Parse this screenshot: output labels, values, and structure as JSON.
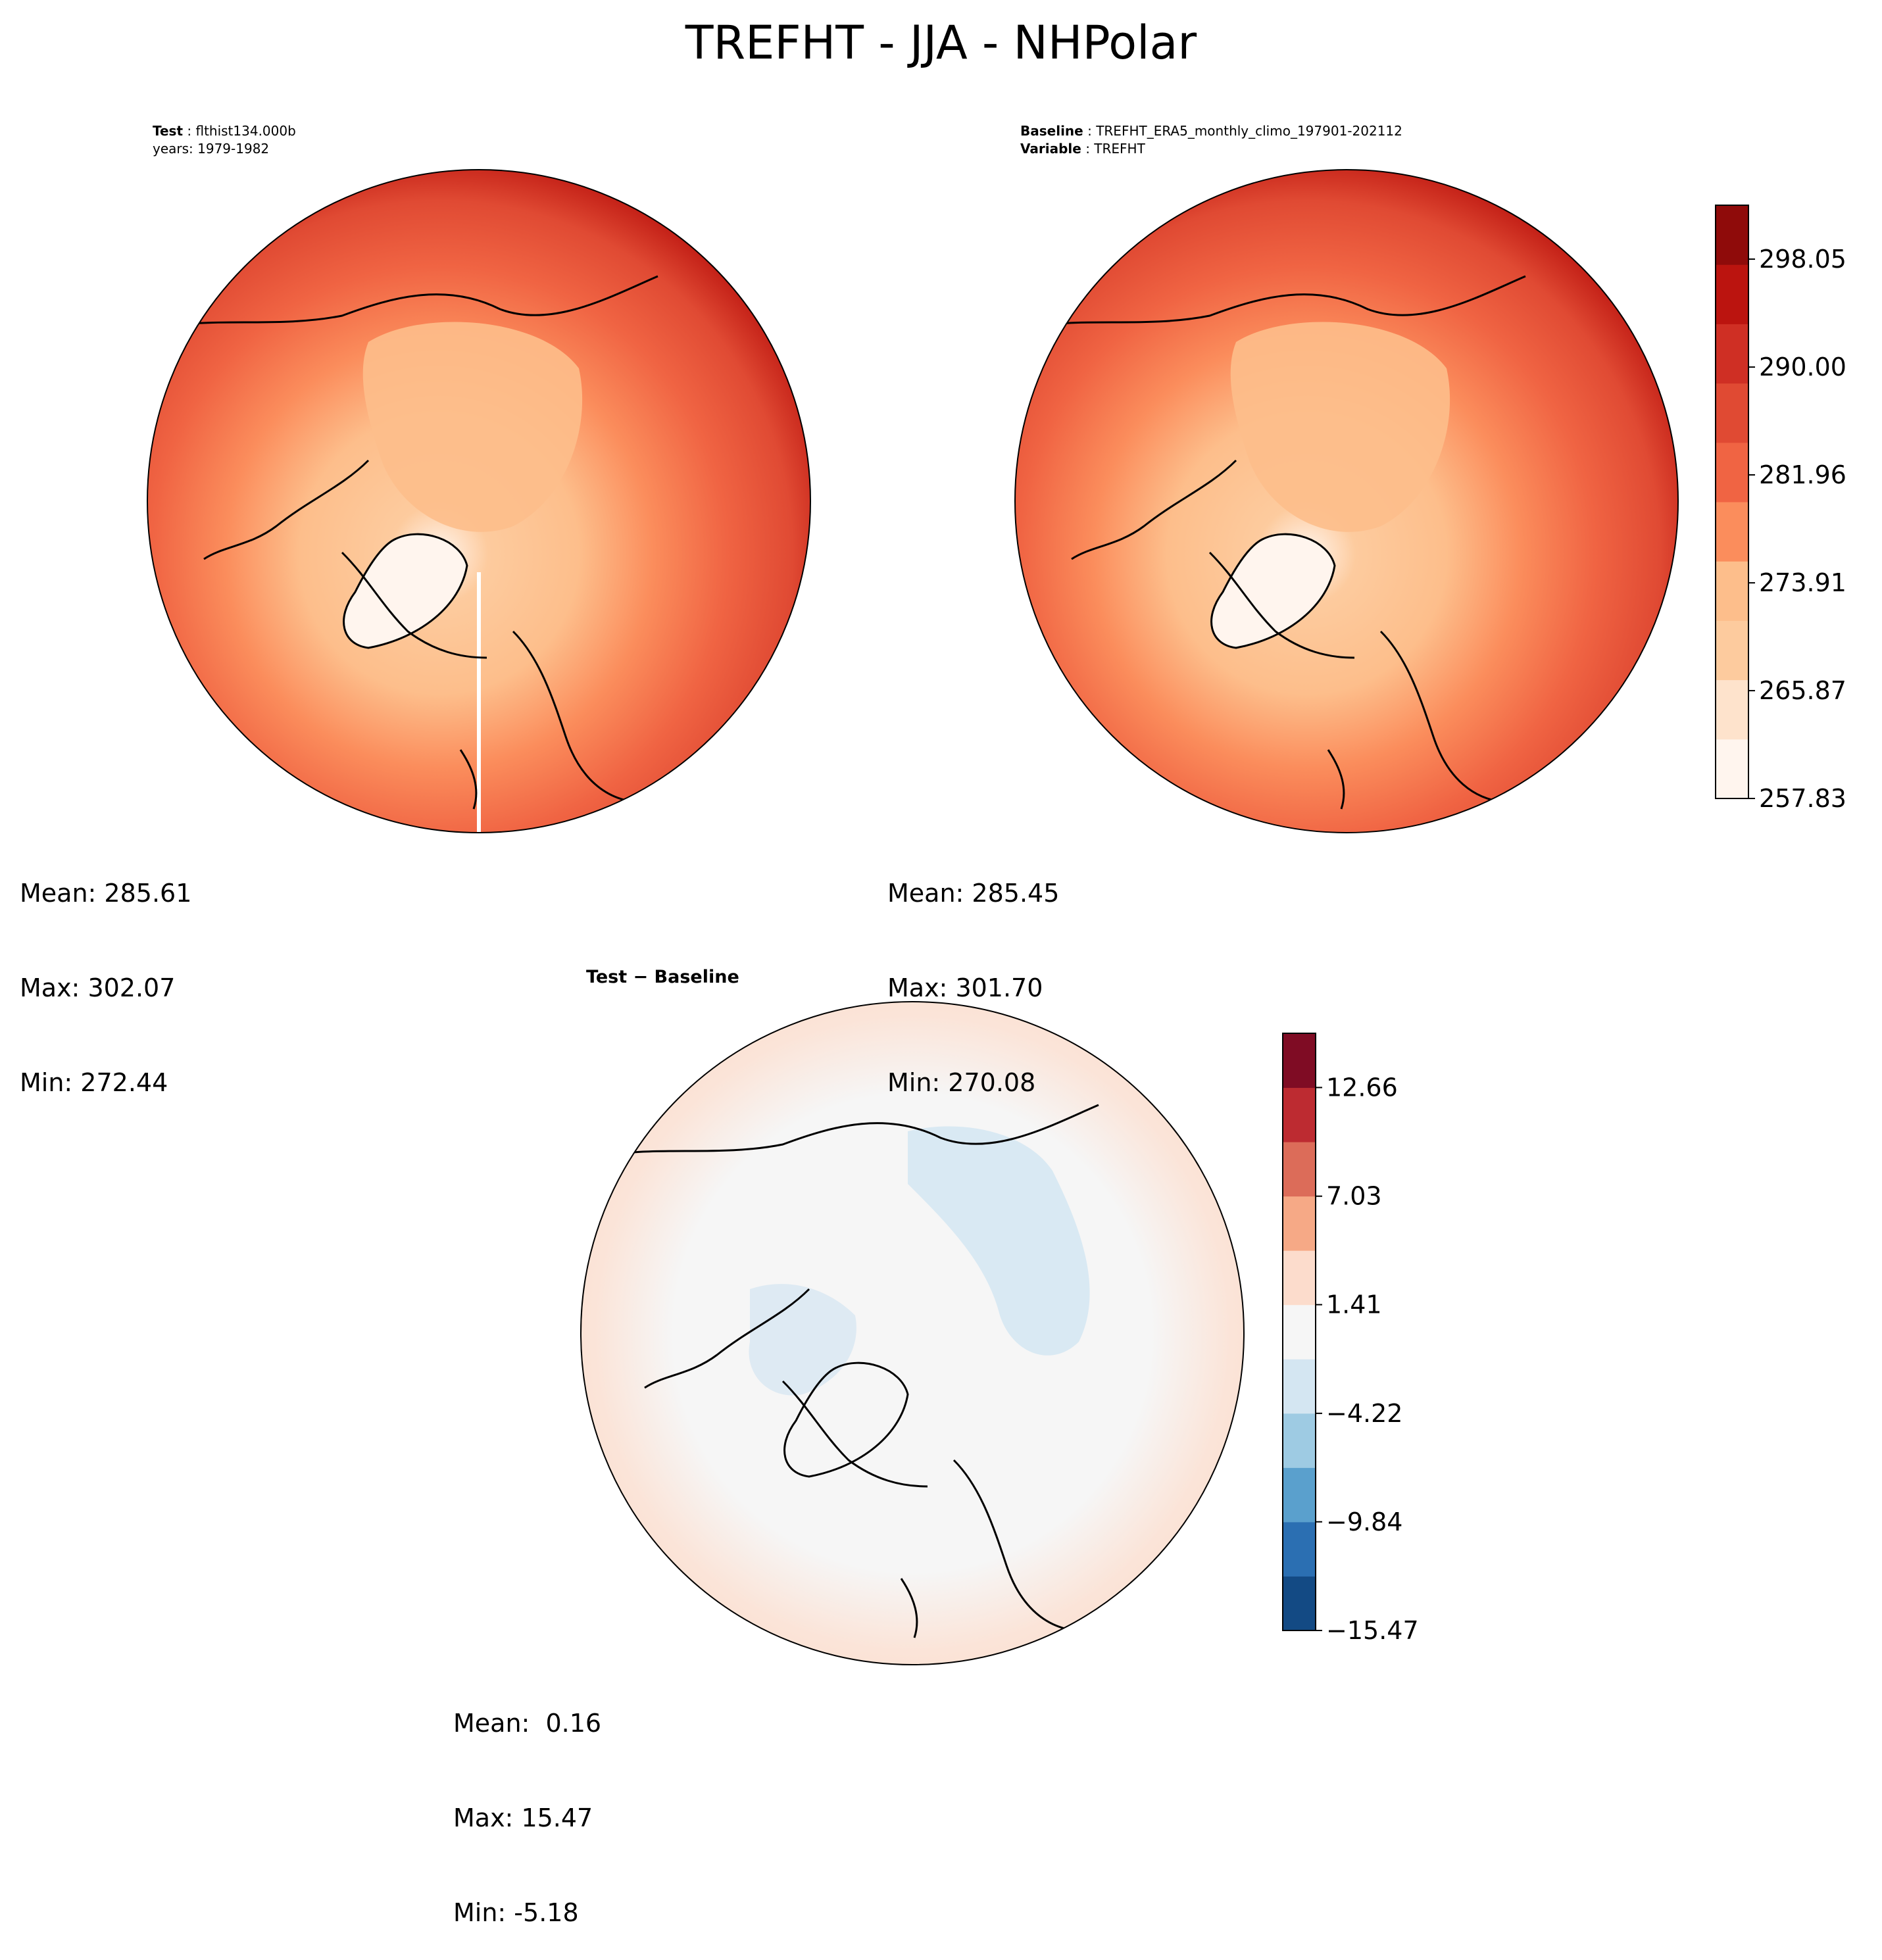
{
  "figure": {
    "title": "TREFHT - JJA - NHPolar"
  },
  "test_panel": {
    "label_key": "Test",
    "label_value": "flthist134.000b",
    "years": "years: 1979-1982",
    "stats": {
      "mean": "Mean: 285.61",
      "max": "Max: 302.07",
      "min": "Min: 272.44"
    }
  },
  "baseline_panel": {
    "baseline_key": "Baseline",
    "baseline_value": "TREFHT_ERA5_monthly_climo_197901-202112",
    "variable_key": "Variable",
    "variable_value": "TREFHT",
    "stats": {
      "mean": "Mean: 285.45",
      "max": "Max: 301.70",
      "min": "Min: 270.08"
    }
  },
  "diff_panel": {
    "title": "Test − Baseline",
    "stats": {
      "mean": "Mean:  0.16",
      "max": "Max: 15.47",
      "min": "Min: -5.18"
    }
  },
  "chart_data": [
    {
      "type": "heatmap",
      "name": "Test",
      "colormap": "Reds",
      "colorbar": {
        "ticks": [
          "298.05",
          "290.00",
          "281.96",
          "273.91",
          "265.87",
          "257.83"
        ],
        "tick_values": [
          298.05,
          290.0,
          281.96,
          273.91,
          265.87,
          257.83
        ],
        "range": [
          257.83,
          302.07
        ],
        "colors": [
          "#fff5ee",
          "#fee3cc",
          "#fdcb9e",
          "#fdbe8b",
          "#fb8d5c",
          "#f06443",
          "#e04a33",
          "#cf2f24",
          "#bb140f",
          "#8f0b0a"
        ]
      }
    },
    {
      "type": "heatmap",
      "name": "Baseline",
      "colormap": "Reds",
      "shares_colorbar_with": "Test"
    },
    {
      "type": "heatmap",
      "name": "Test - Baseline",
      "colormap": "RdBu_r",
      "colorbar": {
        "ticks": [
          "12.66",
          "7.03",
          "1.41",
          "−4.22",
          "−9.84",
          "−15.47"
        ],
        "tick_values": [
          12.66,
          7.03,
          1.41,
          -4.22,
          -9.84,
          -15.47
        ],
        "range": [
          -15.47,
          15.47
        ],
        "colors": [
          "#134a84",
          "#2b6fb2",
          "#5aa0cd",
          "#9ecbe3",
          "#d4e6f2",
          "#f6f6f6",
          "#fcdccc",
          "#f6a986",
          "#dc6c59",
          "#bd2b31",
          "#7f0c24"
        ]
      }
    }
  ]
}
